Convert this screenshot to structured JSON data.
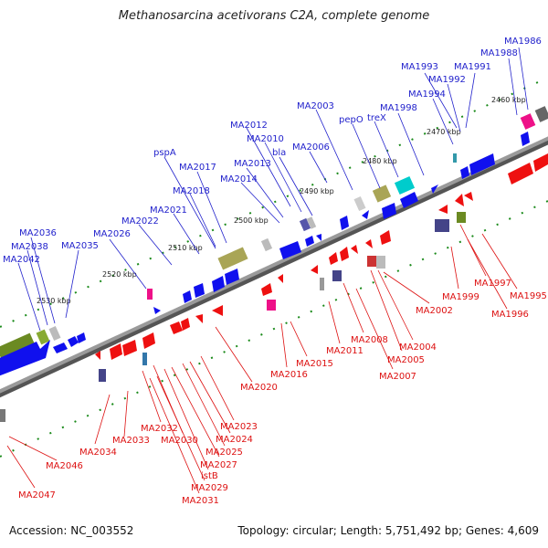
{
  "title": "Methanosarcina acetivorans C2A, complete genome",
  "accession": "Accession: NC_003552",
  "summary": "Topology: circular; Length: 5,751,492 bp; Genes: 4,609",
  "colors": {
    "forward_label": "#2222cc",
    "reverse_label": "#dd1111",
    "backbone": "#888888",
    "forward_gene": "#1010ee",
    "reverse_gene": "#ee1010"
  },
  "ticks": [
    "2460 kbp",
    "2470 kbp",
    "2480 kbp",
    "2490 kbp",
    "2500 kbp",
    "2510 kbp",
    "2520 kbp",
    "2530 kbp"
  ],
  "forward_labels": [
    "MA1986",
    "MA1988",
    "MA1991",
    "MA1993",
    "MA1992",
    "MA1994",
    "MA1998",
    "treX",
    "pepO",
    "MA2003",
    "MA2006",
    "MA2012",
    "MA2010",
    "bla",
    "MA2013",
    "MA2014",
    "pspA",
    "MA2017",
    "MA2018",
    "MA2021",
    "MA2022",
    "MA2026",
    "MA2035",
    "MA2036",
    "MA2038",
    "MA2042"
  ],
  "reverse_labels": [
    "MA1995",
    "MA1996",
    "MA1997",
    "MA1999",
    "MA2002",
    "MA2004",
    "MA2005",
    "MA2007",
    "MA2008",
    "MA2011",
    "MA2015",
    "MA2016",
    "MA2020",
    "MA2023",
    "MA2024",
    "MA2025",
    "MA2027",
    "istB",
    "MA2029",
    "MA2031",
    "MA2030",
    "MA2032",
    "MA2033",
    "MA2034",
    "MA2046",
    "MA2047"
  ]
}
